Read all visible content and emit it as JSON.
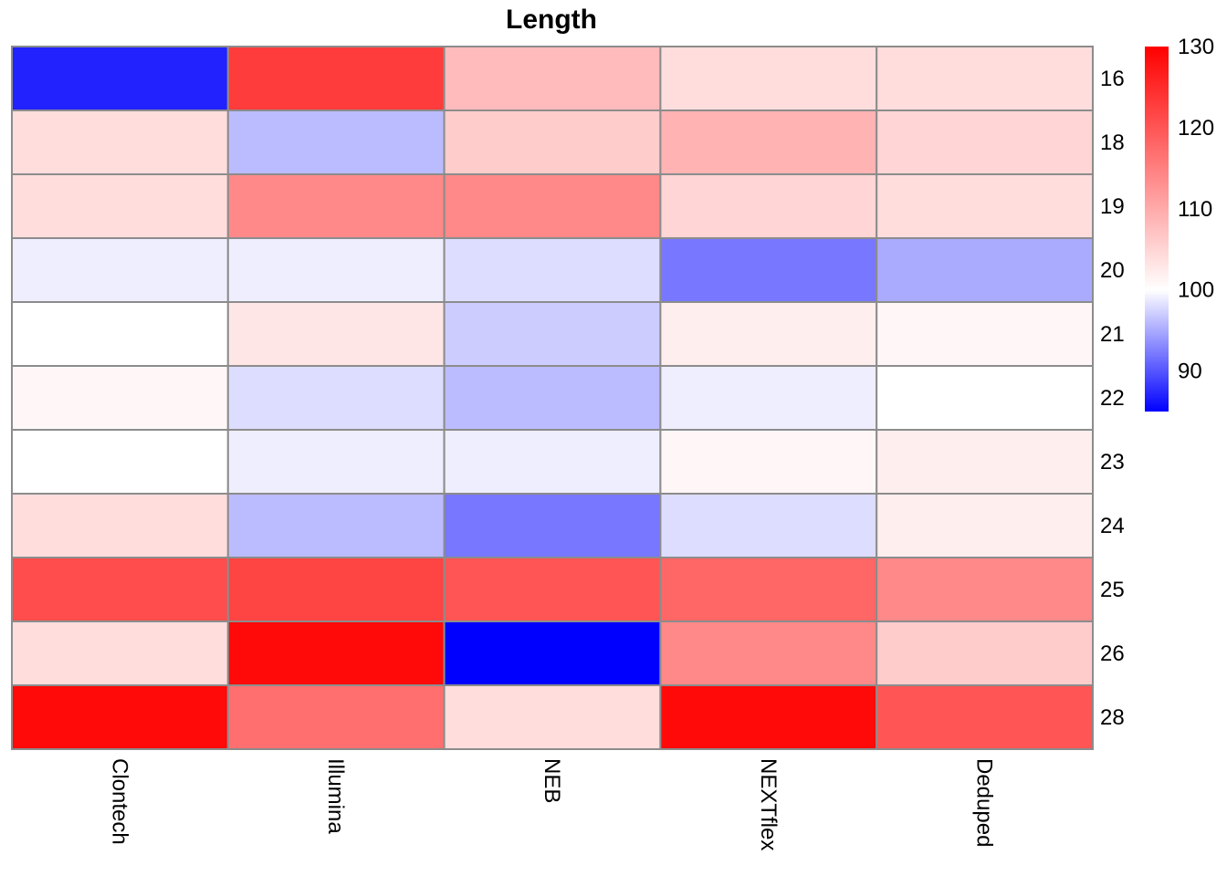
{
  "chart_data": {
    "type": "heatmap",
    "title": "Length",
    "columns": [
      "Clontech",
      "Illumina",
      "NEB",
      "NEXTflex",
      "Deduped"
    ],
    "rows": [
      "16",
      "18",
      "19",
      "20",
      "21",
      "22",
      "23",
      "24",
      "25",
      "26",
      "28"
    ],
    "values": [
      [
        87,
        123,
        108,
        104,
        104
      ],
      [
        104,
        96,
        106,
        109,
        105
      ],
      [
        104,
        114,
        114,
        105,
        104
      ],
      [
        99,
        99,
        98,
        92,
        95
      ],
      [
        100,
        103,
        97,
        102,
        101
      ],
      [
        101,
        98,
        96,
        99,
        100
      ],
      [
        100,
        99,
        99,
        101,
        102
      ],
      [
        104,
        96,
        92,
        98,
        102
      ],
      [
        121,
        122,
        120,
        118,
        114
      ],
      [
        104,
        129,
        85,
        114,
        106
      ],
      [
        129,
        117,
        104,
        129,
        120
      ]
    ],
    "color_scale": {
      "low": "#0000FF",
      "mid": "#FFFFFF",
      "high": "#FF0000",
      "min": 85,
      "mid_value": 100,
      "max": 130
    },
    "legend_ticks": [
      "130",
      "120",
      "110",
      "100",
      "90"
    ],
    "legend_tick_values": [
      130,
      120,
      110,
      100,
      90
    ],
    "legend_placement": "right"
  }
}
